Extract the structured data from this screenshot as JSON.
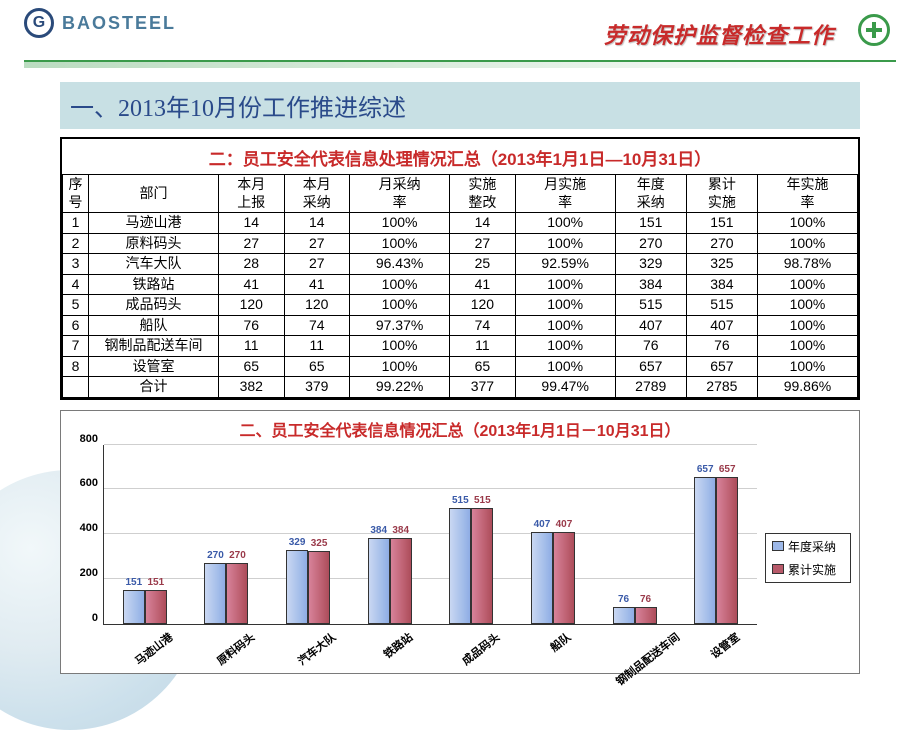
{
  "header": {
    "company": "BAOSTEEL",
    "title": "劳动保护监督检查工作"
  },
  "section_title": "一、2013年10月份工作推进综述",
  "table": {
    "caption": "二：员工安全代表信息处理情况汇总（2013年1月1日—10月31日）",
    "columns": [
      "序号",
      "部门",
      "本月上报",
      "本月采纳",
      "月采纳率",
      "实施整改",
      "月实施率",
      "年度采纳",
      "累计实施",
      "年实施率"
    ],
    "rows": [
      [
        "1",
        "马迹山港",
        "14",
        "14",
        "100%",
        "14",
        "100%",
        "151",
        "151",
        "100%"
      ],
      [
        "2",
        "原料码头",
        "27",
        "27",
        "100%",
        "27",
        "100%",
        "270",
        "270",
        "100%"
      ],
      [
        "3",
        "汽车大队",
        "28",
        "27",
        "96.43%",
        "25",
        "92.59%",
        "329",
        "325",
        "98.78%"
      ],
      [
        "4",
        "铁路站",
        "41",
        "41",
        "100%",
        "41",
        "100%",
        "384",
        "384",
        "100%"
      ],
      [
        "5",
        "成品码头",
        "120",
        "120",
        "100%",
        "120",
        "100%",
        "515",
        "515",
        "100%"
      ],
      [
        "6",
        "船队",
        "76",
        "74",
        "97.37%",
        "74",
        "100%",
        "407",
        "407",
        "100%"
      ],
      [
        "7",
        "钢制品配送车间",
        "11",
        "11",
        "100%",
        "11",
        "100%",
        "76",
        "76",
        "100%"
      ],
      [
        "8",
        "设管室",
        "65",
        "65",
        "100%",
        "65",
        "100%",
        "657",
        "657",
        "100%"
      ],
      [
        "",
        "合计",
        "382",
        "379",
        "99.22%",
        "377",
        "99.47%",
        "2789",
        "2785",
        "99.86%"
      ]
    ]
  },
  "chart": {
    "title": "二、员工安全代表信息情况汇总（2013年1月1日－10月31日）",
    "type": "bar",
    "ylim_max": 800,
    "ytick_step": 200,
    "y_ticks": [
      0,
      200,
      400,
      600,
      800
    ],
    "categories": [
      "马迹山港",
      "原料码头",
      "汽车大队",
      "铁路站",
      "成品码头",
      "船队",
      "钢制品配送车间",
      "设管室"
    ],
    "series": [
      {
        "name": "年度采纳",
        "color": "#9db8e8",
        "label_color": "#3a5aa8",
        "values": [
          151,
          270,
          329,
          384,
          515,
          407,
          76,
          657
        ]
      },
      {
        "name": "累计实施",
        "color": "#b85a6a",
        "label_color": "#9a3a4a",
        "values": [
          151,
          270,
          325,
          384,
          515,
          407,
          76,
          657
        ]
      }
    ],
    "grid_color": "#cfcfcf",
    "background": "#ffffff"
  }
}
